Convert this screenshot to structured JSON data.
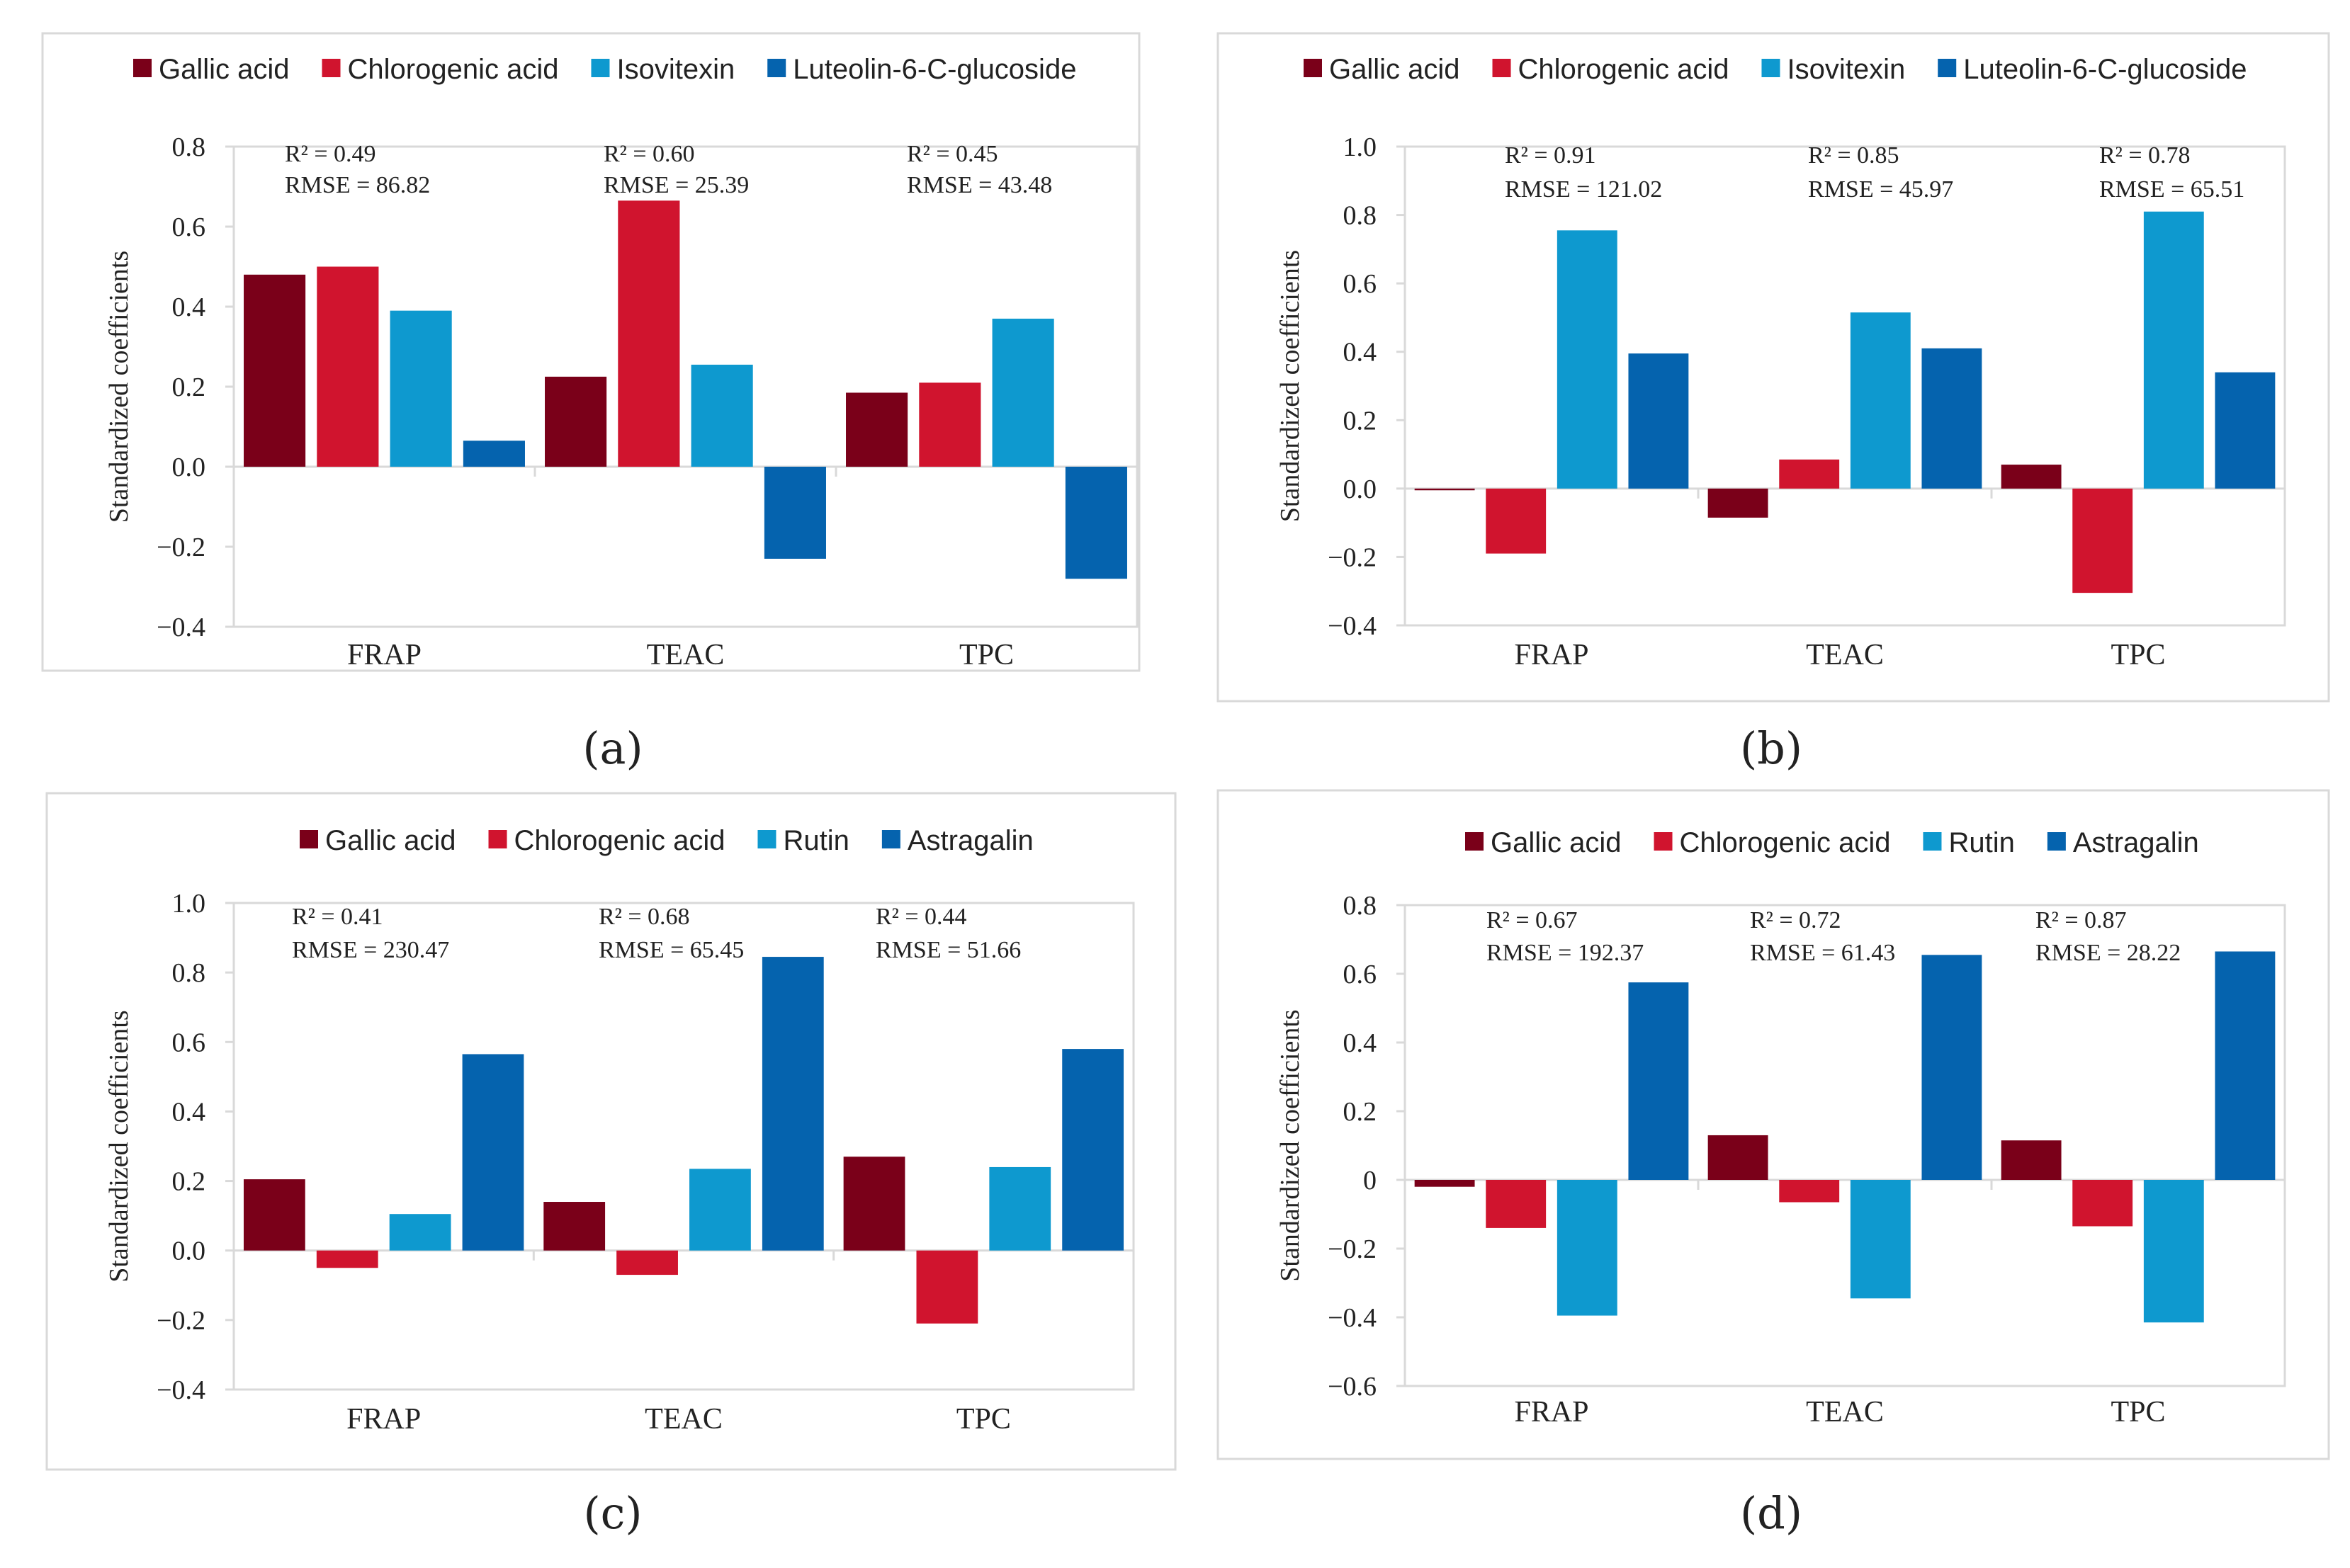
{
  "figure": {
    "series_colors": [
      "#7A0019",
      "#D0142E",
      "#0E99CF",
      "#0563AE"
    ],
    "frame_color": "#D9D9D9",
    "axis_color": "#D9D9D9"
  },
  "chart_data": [
    {
      "type": "bar",
      "caption": "(a)",
      "legend": [
        "Gallic acid",
        "Chlorogenic acid",
        "Isovitexin",
        "Luteolin-6-C-glucoside"
      ],
      "categories": [
        "FRAP",
        "TEAC",
        "TPC"
      ],
      "series": [
        {
          "name": "Gallic acid",
          "values": [
            0.48,
            0.225,
            0.185
          ]
        },
        {
          "name": "Chlorogenic acid",
          "values": [
            0.5,
            0.665,
            0.21
          ]
        },
        {
          "name": "Isovitexin",
          "values": [
            0.39,
            0.255,
            0.37
          ]
        },
        {
          "name": "Luteolin-6-C-glucoside",
          "values": [
            0.065,
            -0.23,
            -0.28
          ]
        }
      ],
      "annotations": [
        {
          "r2": "R² = 0.49",
          "rmse": "RMSE = 86.82"
        },
        {
          "r2": "R² = 0.60",
          "rmse": "RMSE = 25.39"
        },
        {
          "r2": "R² = 0.45",
          "rmse": "RMSE = 43.48"
        }
      ],
      "ylabel": "Standardized coefficients",
      "xlabel": "",
      "ylim": [
        -0.4,
        0.8
      ],
      "ystep": 0.2,
      "ytick_labels": [
        "−0.4",
        "−0.2",
        "0.0",
        "0.2",
        "0.4",
        "0.6",
        "0.8"
      ],
      "grid": false
    },
    {
      "type": "bar",
      "caption": "(b)",
      "legend": [
        "Gallic acid",
        "Chlorogenic acid",
        "Isovitexin",
        "Luteolin-6-C-glucoside"
      ],
      "categories": [
        "FRAP",
        "TEAC",
        "TPC"
      ],
      "series": [
        {
          "name": "Gallic acid",
          "values": [
            -0.005,
            -0.085,
            0.07
          ]
        },
        {
          "name": "Chlorogenic acid",
          "values": [
            -0.19,
            0.085,
            -0.305
          ]
        },
        {
          "name": "Isovitexin",
          "values": [
            0.755,
            0.515,
            0.81
          ]
        },
        {
          "name": "Luteolin-6-C-glucoside",
          "values": [
            0.395,
            0.41,
            0.34
          ]
        }
      ],
      "annotations": [
        {
          "r2": "R² = 0.91",
          "rmse": "RMSE = 121.02"
        },
        {
          "r2": "R² = 0.85",
          "rmse": "RMSE = 45.97"
        },
        {
          "r2": "R²  = 0.78",
          "rmse": "RMSE = 65.51"
        }
      ],
      "ylabel": "Standardized coefficients",
      "xlabel": "",
      "ylim": [
        -0.4,
        1.0
      ],
      "ystep": 0.2,
      "ytick_labels": [
        "−0.4",
        "−0.2",
        "0.0",
        "0.2",
        "0.4",
        "0.6",
        "0.8",
        "1.0"
      ],
      "grid": false
    },
    {
      "type": "bar",
      "caption": "(c)",
      "legend": [
        "Gallic acid",
        "Chlorogenic acid",
        "Rutin",
        "Astragalin"
      ],
      "categories": [
        "FRAP",
        "TEAC",
        "TPC"
      ],
      "series": [
        {
          "name": "Gallic acid",
          "values": [
            0.205,
            0.14,
            0.27
          ]
        },
        {
          "name": "Chlorogenic acid",
          "values": [
            -0.05,
            -0.07,
            -0.21
          ]
        },
        {
          "name": "Rutin",
          "values": [
            0.105,
            0.235,
            0.24
          ]
        },
        {
          "name": "Astragalin",
          "values": [
            0.565,
            0.845,
            0.58
          ]
        }
      ],
      "annotations": [
        {
          "r2": "R² = 0.41",
          "rmse": "RMSE = 230.47"
        },
        {
          "r2": "R² = 0.68",
          "rmse": "RMSE = 65.45"
        },
        {
          "r2": "R² = 0.44",
          "rmse": "RMSE = 51.66"
        }
      ],
      "ylabel": "Standardized coefficients",
      "xlabel": "",
      "ylim": [
        -0.4,
        1.0
      ],
      "ystep": 0.2,
      "ytick_labels": [
        "−0.4",
        "−0.2",
        "0.0",
        "0.2",
        "0.4",
        "0.6",
        "0.8",
        "1.0"
      ],
      "grid": false
    },
    {
      "type": "bar",
      "caption": "(d)",
      "legend": [
        "Gallic acid",
        "Chlorogenic acid",
        "Rutin",
        "Astragalin"
      ],
      "categories": [
        "FRAP",
        "TEAC",
        "TPC"
      ],
      "series": [
        {
          "name": "Gallic acid",
          "values": [
            -0.02,
            0.13,
            0.115
          ]
        },
        {
          "name": "Chlorogenic acid",
          "values": [
            -0.14,
            -0.065,
            -0.135
          ]
        },
        {
          "name": "Rutin",
          "values": [
            -0.395,
            -0.345,
            -0.415
          ]
        },
        {
          "name": "Astragalin",
          "values": [
            0.575,
            0.655,
            0.665
          ]
        }
      ],
      "annotations": [
        {
          "r2": "R² = 0.67",
          "rmse": "RMSE = 192.37"
        },
        {
          "r2": "R² = 0.72",
          "rmse": "RMSE = 61.43"
        },
        {
          "r2": "R² = 0.87",
          "rmse": "RMSE = 28.22"
        }
      ],
      "ylabel": "Standardized coefficients",
      "xlabel": "",
      "ylim": [
        -0.6,
        0.8
      ],
      "ystep": 0.2,
      "ytick_labels": [
        "−0.6",
        "−0.4",
        "−0.2",
        "0",
        "0.2",
        "0.4",
        "0.6",
        "0.8"
      ],
      "grid": false
    }
  ]
}
